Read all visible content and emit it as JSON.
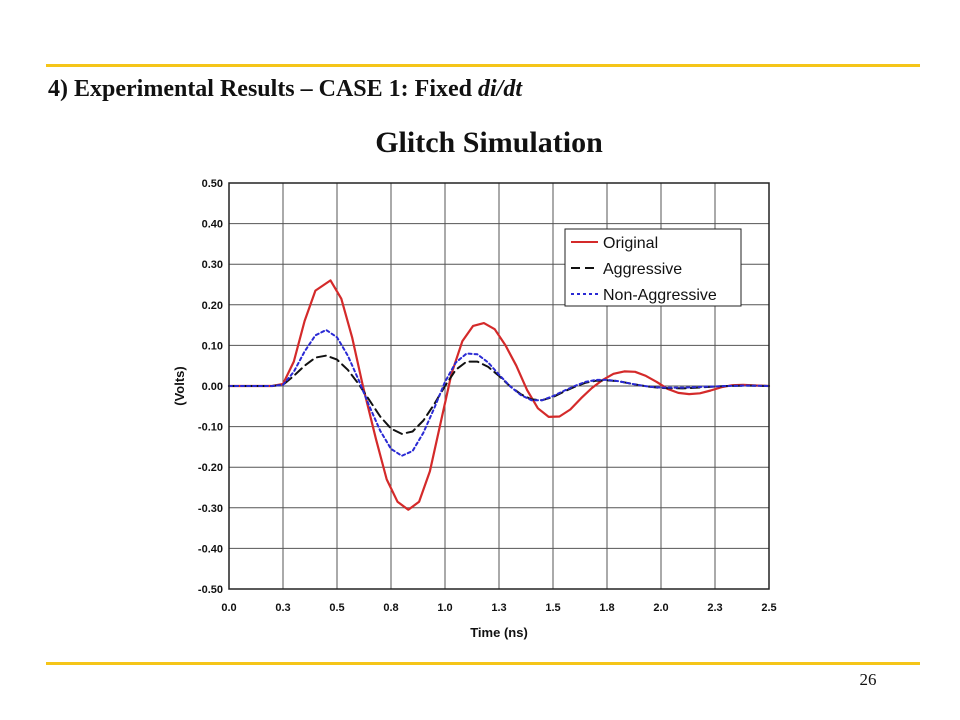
{
  "slide": {
    "heading_prefix": "4) Experimental Results – CASE 1: Fixed ",
    "heading_italic": "di/dt",
    "page_number": "26",
    "accent_color": "#f5c518"
  },
  "chart_data": {
    "type": "line",
    "title": "Glitch Simulation",
    "xlabel": "Time (ns)",
    "ylabel": "(Volts)",
    "xlim": [
      0,
      2.5
    ],
    "ylim": [
      -0.5,
      0.5
    ],
    "grid": true,
    "legend_position": "top-right",
    "x_ticks": [
      {
        "value": 0.0,
        "label": "0.0"
      },
      {
        "value": 0.25,
        "label": "0.3"
      },
      {
        "value": 0.5,
        "label": "0.5"
      },
      {
        "value": 0.75,
        "label": "0.8"
      },
      {
        "value": 1.0,
        "label": "1.0"
      },
      {
        "value": 1.25,
        "label": "1.3"
      },
      {
        "value": 1.5,
        "label": "1.5"
      },
      {
        "value": 1.75,
        "label": "1.8"
      },
      {
        "value": 2.0,
        "label": "2.0"
      },
      {
        "value": 2.25,
        "label": "2.3"
      },
      {
        "value": 2.5,
        "label": "2.5"
      }
    ],
    "y_ticks": [
      {
        "value": 0.5,
        "label": "0.50"
      },
      {
        "value": 0.4,
        "label": "0.40"
      },
      {
        "value": 0.3,
        "label": "0.30"
      },
      {
        "value": 0.2,
        "label": "0.20"
      },
      {
        "value": 0.1,
        "label": "0.10"
      },
      {
        "value": 0.0,
        "label": "0.00"
      },
      {
        "value": -0.1,
        "label": "-0.10"
      },
      {
        "value": -0.2,
        "label": "-0.20"
      },
      {
        "value": -0.3,
        "label": "-0.30"
      },
      {
        "value": -0.4,
        "label": "-0.40"
      },
      {
        "value": -0.5,
        "label": "-0.50"
      }
    ],
    "series": [
      {
        "name": "Original",
        "color": "#d42a2a",
        "dash": "solid",
        "points": [
          [
            0.0,
            0
          ],
          [
            0.1,
            0
          ],
          [
            0.2,
            0
          ],
          [
            0.25,
            0.005
          ],
          [
            0.3,
            0.06
          ],
          [
            0.35,
            0.16
          ],
          [
            0.4,
            0.235
          ],
          [
            0.47,
            0.26
          ],
          [
            0.52,
            0.215
          ],
          [
            0.57,
            0.12
          ],
          [
            0.62,
            0.0
          ],
          [
            0.68,
            -0.13
          ],
          [
            0.73,
            -0.23
          ],
          [
            0.78,
            -0.285
          ],
          [
            0.83,
            -0.305
          ],
          [
            0.88,
            -0.285
          ],
          [
            0.93,
            -0.21
          ],
          [
            0.98,
            -0.09
          ],
          [
            1.03,
            0.03
          ],
          [
            1.08,
            0.11
          ],
          [
            1.13,
            0.148
          ],
          [
            1.18,
            0.155
          ],
          [
            1.23,
            0.14
          ],
          [
            1.28,
            0.1
          ],
          [
            1.33,
            0.05
          ],
          [
            1.38,
            -0.01
          ],
          [
            1.43,
            -0.055
          ],
          [
            1.48,
            -0.076
          ],
          [
            1.53,
            -0.075
          ],
          [
            1.58,
            -0.058
          ],
          [
            1.63,
            -0.03
          ],
          [
            1.68,
            -0.005
          ],
          [
            1.73,
            0.015
          ],
          [
            1.78,
            0.03
          ],
          [
            1.83,
            0.036
          ],
          [
            1.88,
            0.035
          ],
          [
            1.93,
            0.025
          ],
          [
            1.98,
            0.01
          ],
          [
            2.03,
            -0.007
          ],
          [
            2.08,
            -0.017
          ],
          [
            2.13,
            -0.02
          ],
          [
            2.18,
            -0.018
          ],
          [
            2.23,
            -0.011
          ],
          [
            2.28,
            -0.003
          ],
          [
            2.33,
            0.002
          ],
          [
            2.38,
            0.003
          ],
          [
            2.45,
            0.001
          ],
          [
            2.5,
            0.0
          ]
        ]
      },
      {
        "name": "Aggressive",
        "color": "#111111",
        "dash": "long-dash",
        "points": [
          [
            0.0,
            0
          ],
          [
            0.1,
            0
          ],
          [
            0.2,
            0
          ],
          [
            0.25,
            0.003
          ],
          [
            0.3,
            0.025
          ],
          [
            0.35,
            0.05
          ],
          [
            0.4,
            0.07
          ],
          [
            0.45,
            0.075
          ],
          [
            0.5,
            0.065
          ],
          [
            0.55,
            0.04
          ],
          [
            0.6,
            0.005
          ],
          [
            0.65,
            -0.035
          ],
          [
            0.7,
            -0.075
          ],
          [
            0.75,
            -0.105
          ],
          [
            0.8,
            -0.118
          ],
          [
            0.85,
            -0.112
          ],
          [
            0.9,
            -0.085
          ],
          [
            0.95,
            -0.045
          ],
          [
            1.0,
            0.0
          ],
          [
            1.05,
            0.04
          ],
          [
            1.1,
            0.06
          ],
          [
            1.15,
            0.06
          ],
          [
            1.2,
            0.047
          ],
          [
            1.25,
            0.025
          ],
          [
            1.3,
            0.0
          ],
          [
            1.35,
            -0.02
          ],
          [
            1.4,
            -0.033
          ],
          [
            1.45,
            -0.035
          ],
          [
            1.5,
            -0.027
          ],
          [
            1.55,
            -0.014
          ],
          [
            1.6,
            -0.002
          ],
          [
            1.65,
            0.008
          ],
          [
            1.7,
            0.013
          ],
          [
            1.75,
            0.014
          ],
          [
            1.8,
            0.012
          ],
          [
            1.85,
            0.007
          ],
          [
            1.9,
            0.002
          ],
          [
            1.95,
            -0.002
          ],
          [
            2.0,
            -0.005
          ],
          [
            2.1,
            -0.006
          ],
          [
            2.2,
            -0.003
          ],
          [
            2.3,
            0.0
          ],
          [
            2.4,
            0.001
          ],
          [
            2.5,
            0.0
          ]
        ]
      },
      {
        "name": "Non-Aggressive",
        "color": "#2a2ad4",
        "dash": "short-dash",
        "points": [
          [
            0.0,
            0
          ],
          [
            0.1,
            0
          ],
          [
            0.2,
            0
          ],
          [
            0.25,
            0.003
          ],
          [
            0.3,
            0.035
          ],
          [
            0.35,
            0.085
          ],
          [
            0.4,
            0.125
          ],
          [
            0.45,
            0.138
          ],
          [
            0.5,
            0.12
          ],
          [
            0.55,
            0.075
          ],
          [
            0.6,
            0.015
          ],
          [
            0.65,
            -0.05
          ],
          [
            0.7,
            -0.11
          ],
          [
            0.75,
            -0.155
          ],
          [
            0.8,
            -0.172
          ],
          [
            0.85,
            -0.16
          ],
          [
            0.9,
            -0.115
          ],
          [
            0.95,
            -0.055
          ],
          [
            1.0,
            0.01
          ],
          [
            1.05,
            0.058
          ],
          [
            1.1,
            0.08
          ],
          [
            1.15,
            0.078
          ],
          [
            1.2,
            0.058
          ],
          [
            1.25,
            0.028
          ],
          [
            1.3,
            0.0
          ],
          [
            1.35,
            -0.022
          ],
          [
            1.4,
            -0.035
          ],
          [
            1.45,
            -0.035
          ],
          [
            1.5,
            -0.025
          ],
          [
            1.55,
            -0.012
          ],
          [
            1.6,
            0.0
          ],
          [
            1.65,
            0.01
          ],
          [
            1.7,
            0.015
          ],
          [
            1.75,
            0.015
          ],
          [
            1.8,
            0.012
          ],
          [
            1.85,
            0.007
          ],
          [
            1.9,
            0.002
          ],
          [
            1.95,
            -0.002
          ],
          [
            2.0,
            -0.004
          ],
          [
            2.1,
            -0.004
          ],
          [
            2.2,
            -0.002
          ],
          [
            2.3,
            0.0
          ],
          [
            2.4,
            0.001
          ],
          [
            2.5,
            0.0
          ]
        ]
      }
    ]
  }
}
